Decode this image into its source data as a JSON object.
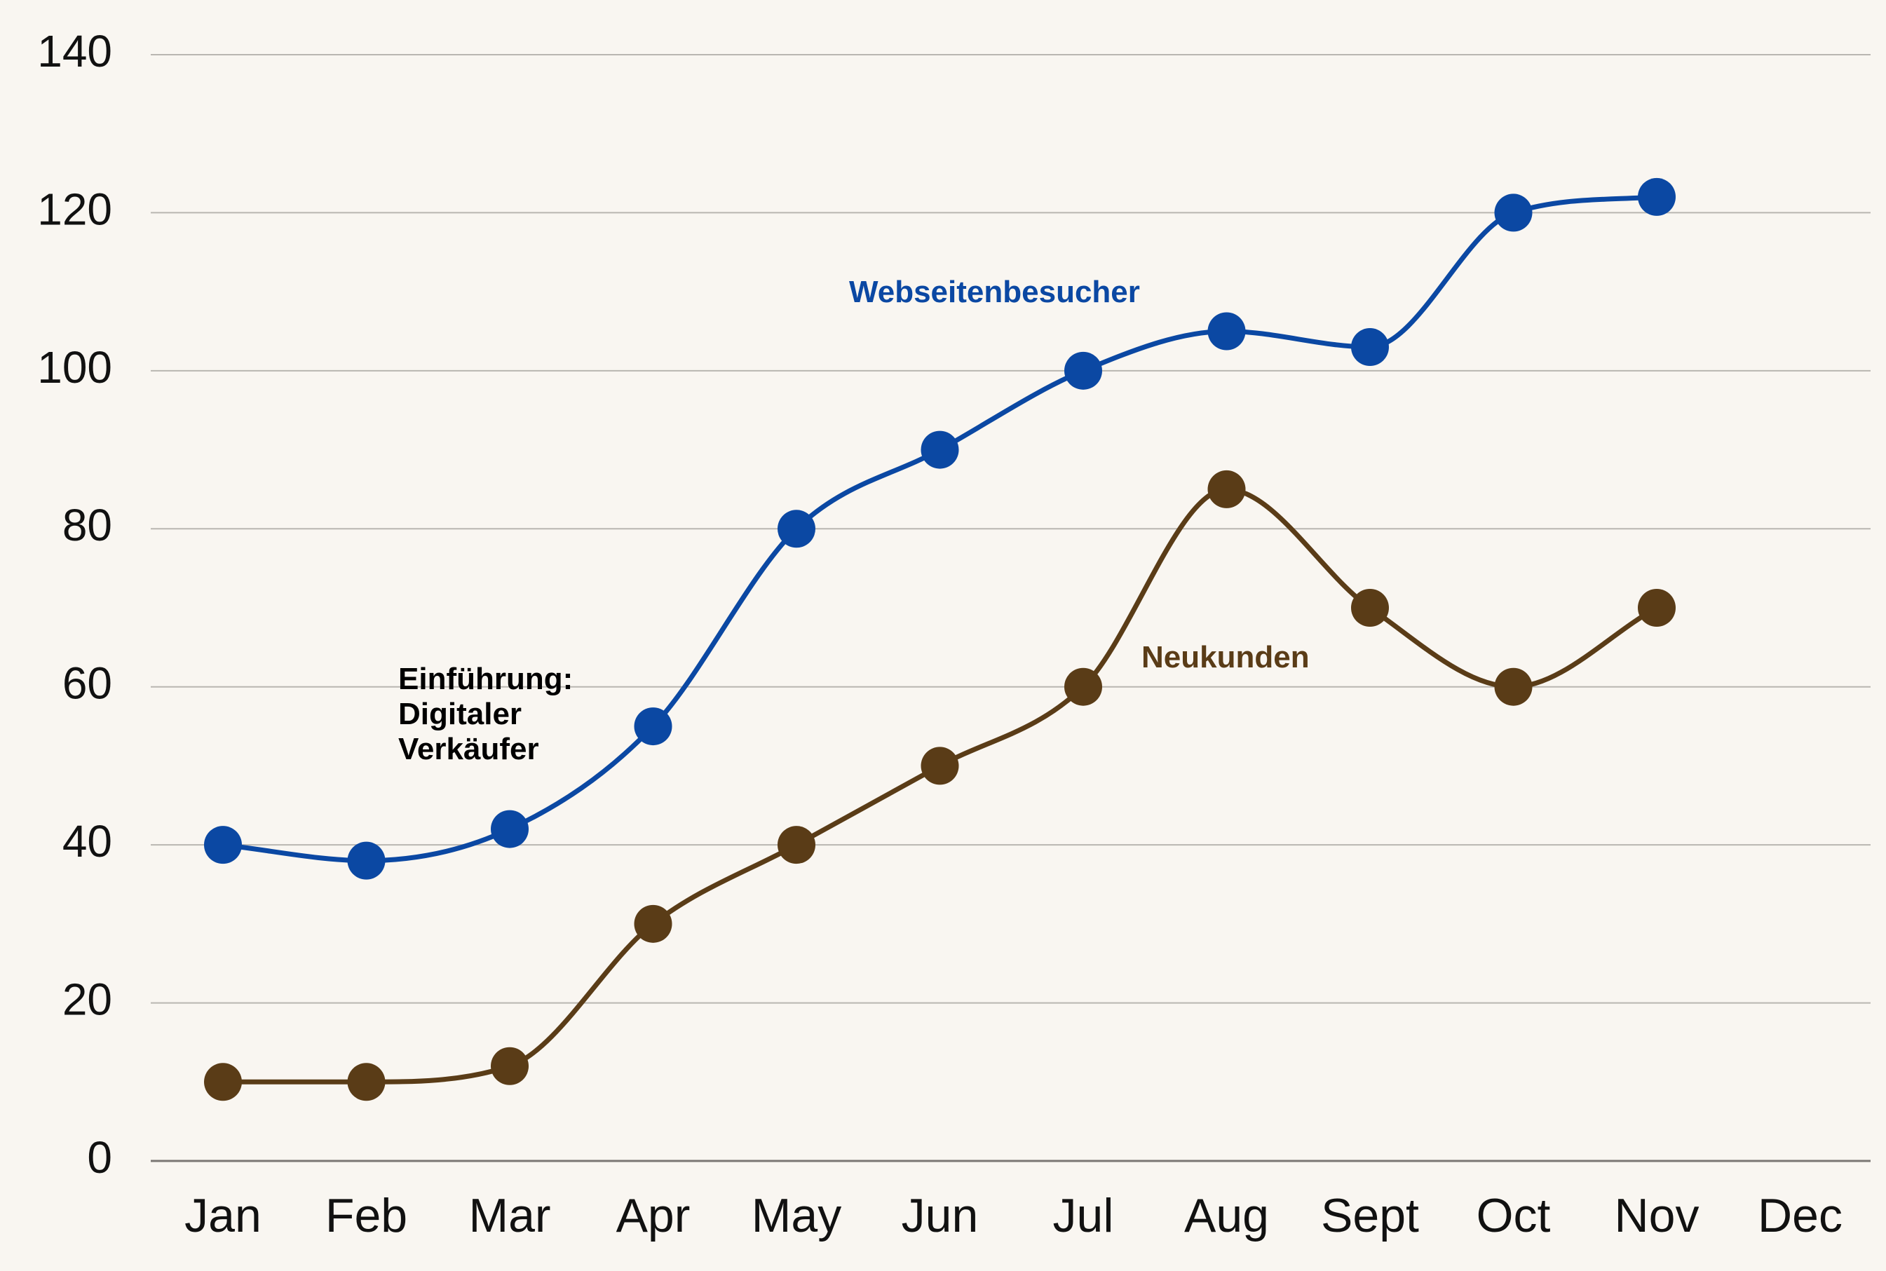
{
  "chart_data": {
    "type": "line",
    "title": "",
    "xlabel": "",
    "ylabel": "",
    "categories": [
      "Jan",
      "Feb",
      "Mar",
      "Apr",
      "May",
      "Jun",
      "Jul",
      "Aug",
      "Sept",
      "Oct",
      "Nov",
      "Dec"
    ],
    "ylim": [
      0,
      140
    ],
    "yticks": [
      0,
      20,
      40,
      60,
      80,
      100,
      120,
      140
    ],
    "grid": true,
    "smooth": true,
    "series": [
      {
        "name": "Webseitenbesucher",
        "color": "#0b48a3",
        "values": [
          40,
          38,
          42,
          55,
          80,
          90,
          100,
          105,
          103,
          120,
          122,
          null
        ]
      },
      {
        "name": "Neukunden",
        "color": "#5a3c17",
        "values": [
          10,
          10,
          12,
          30,
          40,
          50,
          60,
          85,
          70,
          60,
          70,
          null
        ]
      }
    ],
    "annotations": [
      {
        "lines": [
          "Einführung:",
          "Digitaler",
          "Verkäufer"
        ],
        "color": "#000000"
      }
    ]
  }
}
